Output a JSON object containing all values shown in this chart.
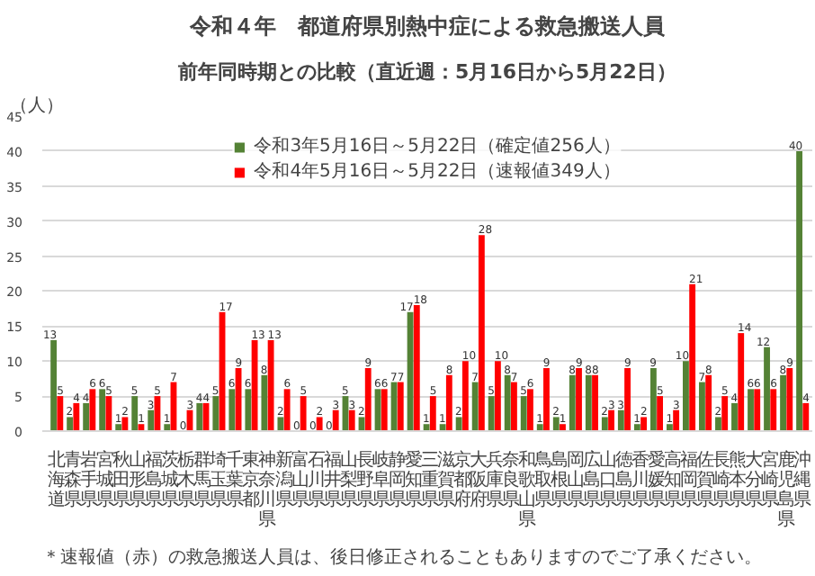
{
  "chart_data": {
    "type": "bar",
    "title": "令和４年　都道府県別熱中症による救急搬送人員",
    "subtitle": "前年同時期との比較（直近週：5月16日から5月22日）",
    "ylabel": "（人）",
    "categories": [
      "北海道",
      "青森県",
      "岩手県",
      "宮城県",
      "秋田県",
      "山形県",
      "福島県",
      "茨城県",
      "栃木県",
      "群馬県",
      "埼玉県",
      "千葉県",
      "東京都",
      "神奈川県",
      "新潟県",
      "富山県",
      "石川県",
      "福井県",
      "山梨県",
      "長野県",
      "岐阜県",
      "静岡県",
      "愛知県",
      "三重県",
      "滋賀県",
      "京都府",
      "大阪府",
      "兵庫県",
      "奈良県",
      "和歌山県",
      "鳥取県",
      "島根県",
      "岡山県",
      "広島県",
      "山口県",
      "徳島県",
      "香川県",
      "愛媛県",
      "高知県",
      "福岡県",
      "佐賀県",
      "長崎県",
      "熊本県",
      "大分県",
      "宮崎県",
      "鹿児島県",
      "沖縄県"
    ],
    "series": [
      {
        "name": "令和3年5月16日～5月22日（確定値256人）",
        "color": "#548235",
        "values": [
          13,
          2,
          4,
          6,
          1,
          5,
          3,
          1,
          0,
          4,
          5,
          6,
          6,
          8,
          2,
          0,
          0,
          0,
          5,
          2,
          6,
          7,
          17,
          1,
          1,
          2,
          7,
          5,
          8,
          5,
          1,
          2,
          8,
          8,
          2,
          3,
          1,
          9,
          1,
          10,
          7,
          2,
          4,
          6,
          12,
          8,
          40
        ]
      },
      {
        "name": "令和4年5月16日～5月22日（速報値349人）",
        "color": "#ff0000",
        "values": [
          5,
          4,
          6,
          5,
          2,
          1,
          5,
          7,
          3,
          4,
          17,
          9,
          13,
          13,
          6,
          5,
          2,
          3,
          3,
          9,
          6,
          7,
          18,
          5,
          8,
          10,
          28,
          10,
          7,
          6,
          9,
          1,
          9,
          8,
          3,
          9,
          2,
          5,
          3,
          21,
          8,
          5,
          14,
          6,
          6,
          9,
          4
        ]
      }
    ],
    "ylim": [
      0,
      45
    ],
    "yticks": [
      0,
      5,
      10,
      15,
      20,
      25,
      30,
      35,
      40,
      45
    ],
    "grid": "y",
    "legend": "top",
    "data_labels": true,
    "annotations": [
      "＊速報値（赤）の救急搬送人員は、後日修正されることもありますのでご了承ください。"
    ]
  }
}
